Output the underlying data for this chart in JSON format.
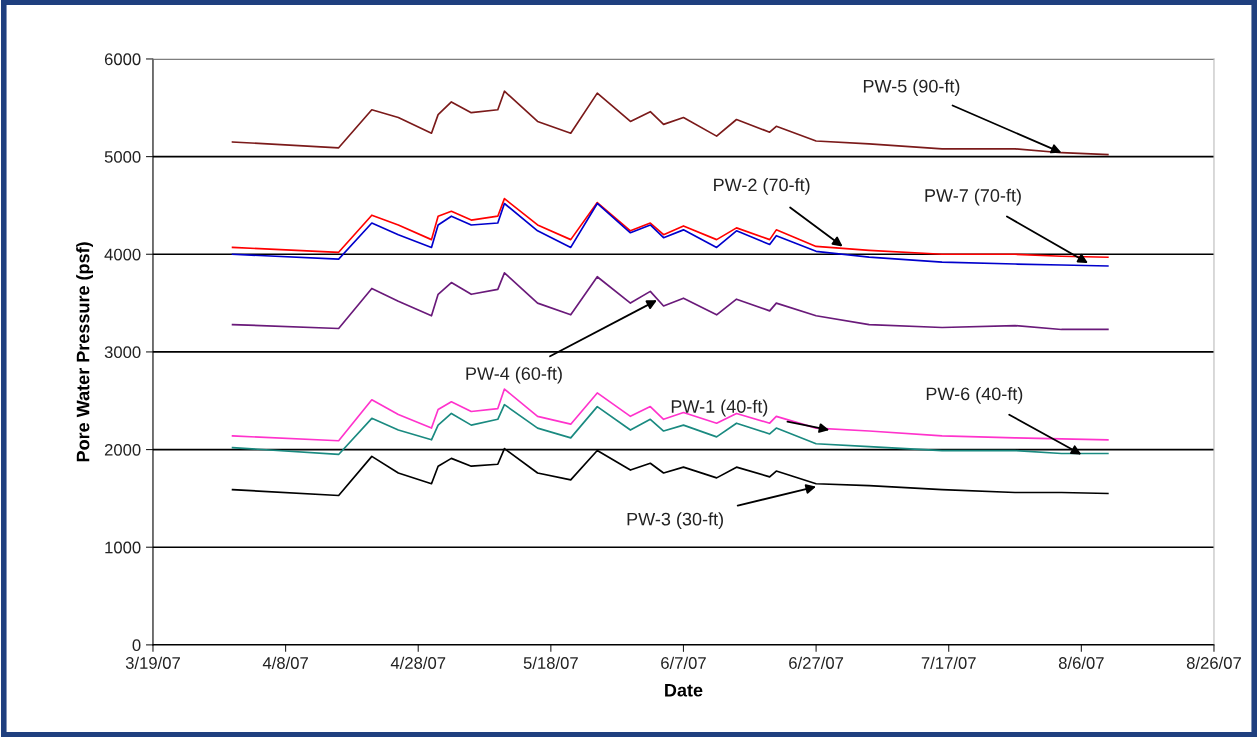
{
  "chart_data": {
    "type": "line",
    "xlabel": "Date",
    "ylabel": "Pore Water Pressure (psf)",
    "x": [
      "2007-03-31",
      "2007-04-16",
      "2007-04-21",
      "2007-04-25",
      "2007-04-30",
      "2007-05-01",
      "2007-05-03",
      "2007-05-06",
      "2007-05-10",
      "2007-05-11",
      "2007-05-16",
      "2007-05-21",
      "2007-05-25",
      "2007-05-30",
      "2007-06-02",
      "2007-06-04",
      "2007-06-07",
      "2007-06-12",
      "2007-06-15",
      "2007-06-20",
      "2007-06-21",
      "2007-06-27",
      "2007-07-05",
      "2007-07-16",
      "2007-07-27",
      "2007-08-03",
      "2007-08-10"
    ],
    "series": [
      {
        "color": "#7b1a1a",
        "values": [
          5150,
          5090,
          5480,
          5400,
          5240,
          5430,
          5560,
          5450,
          5480,
          5670,
          5360,
          5240,
          5650,
          5360,
          5460,
          5330,
          5400,
          5210,
          5380,
          5250,
          5310,
          5160,
          5130,
          5080,
          5080,
          5040,
          5020
        ]
      },
      {
        "color": "#ff0000",
        "values": [
          4070,
          4020,
          4400,
          4300,
          4150,
          4390,
          4440,
          4350,
          4390,
          4570,
          4300,
          4150,
          4530,
          4240,
          4320,
          4200,
          4290,
          4150,
          4270,
          4150,
          4250,
          4080,
          4040,
          4000,
          4000,
          3980,
          3970
        ]
      },
      {
        "color": "#0000cc",
        "values": [
          4000,
          3950,
          4320,
          4200,
          4070,
          4300,
          4390,
          4300,
          4320,
          4520,
          4240,
          4070,
          4520,
          4220,
          4300,
          4170,
          4250,
          4070,
          4240,
          4100,
          4190,
          4030,
          3970,
          3920,
          3900,
          3890,
          3880
        ]
      },
      {
        "color": "#6a1a7a",
        "values": [
          3280,
          3240,
          3650,
          3520,
          3370,
          3590,
          3710,
          3590,
          3640,
          3810,
          3500,
          3380,
          3770,
          3500,
          3620,
          3470,
          3550,
          3380,
          3540,
          3420,
          3500,
          3370,
          3280,
          3250,
          3270,
          3230,
          3230
        ]
      },
      {
        "color": "#ff33cc",
        "values": [
          2140,
          2090,
          2510,
          2360,
          2220,
          2410,
          2490,
          2390,
          2420,
          2620,
          2340,
          2260,
          2580,
          2340,
          2440,
          2310,
          2380,
          2270,
          2370,
          2270,
          2340,
          2220,
          2190,
          2140,
          2120,
          2110,
          2100
        ]
      },
      {
        "color": "#1a8a80",
        "values": [
          2020,
          1950,
          2320,
          2200,
          2100,
          2250,
          2370,
          2250,
          2310,
          2460,
          2220,
          2120,
          2440,
          2200,
          2310,
          2190,
          2250,
          2130,
          2270,
          2160,
          2220,
          2060,
          2030,
          1990,
          1990,
          1960,
          1960
        ]
      },
      {
        "color": "#000000",
        "values": [
          1590,
          1530,
          1930,
          1760,
          1650,
          1830,
          1910,
          1830,
          1850,
          2010,
          1760,
          1690,
          1990,
          1790,
          1860,
          1760,
          1820,
          1710,
          1820,
          1720,
          1780,
          1650,
          1630,
          1590,
          1560,
          1560,
          1550
        ]
      }
    ],
    "annotations": [
      {
        "text": "PW-5 (90-ft)",
        "x": "2007-08-03",
        "y": 5040
      },
      {
        "text": "PW-2 (70-ft)",
        "x": "2007-07-01",
        "y": 4080
      },
      {
        "text": "PW-7 (70-ft)",
        "x": "2007-08-07",
        "y": 3910
      },
      {
        "text": "PW-4 (60-ft)",
        "x": "2007-06-03",
        "y": 3530
      },
      {
        "text": "PW-1 (40-ft)",
        "x": "2007-06-29",
        "y": 2200
      },
      {
        "text": "PW-6 (40-ft)",
        "x": "2007-08-06",
        "y": 1950
      },
      {
        "text": "PW-3 (30-ft)",
        "x": "2007-06-27",
        "y": 1620
      }
    ],
    "xlim": [
      "2007-03-19",
      "2007-08-26"
    ],
    "xticks": [
      {
        "value": "2007-03-19",
        "label": "3/19/07"
      },
      {
        "value": "2007-04-08",
        "label": "4/8/07"
      },
      {
        "value": "2007-04-28",
        "label": "4/28/07"
      },
      {
        "value": "2007-05-18",
        "label": "5/18/07"
      },
      {
        "value": "2007-06-07",
        "label": "6/7/07"
      },
      {
        "value": "2007-06-27",
        "label": "6/27/07"
      },
      {
        "value": "2007-07-17",
        "label": "7/17/07"
      },
      {
        "value": "2007-08-06",
        "label": "8/6/07"
      },
      {
        "value": "2007-08-26",
        "label": "8/26/07"
      }
    ],
    "ylim": [
      0,
      6000
    ],
    "yticks": [
      0,
      1000,
      2000,
      3000,
      4000,
      5000,
      6000
    ],
    "grid": "y",
    "marker": "none",
    "line_style": "solid"
  }
}
